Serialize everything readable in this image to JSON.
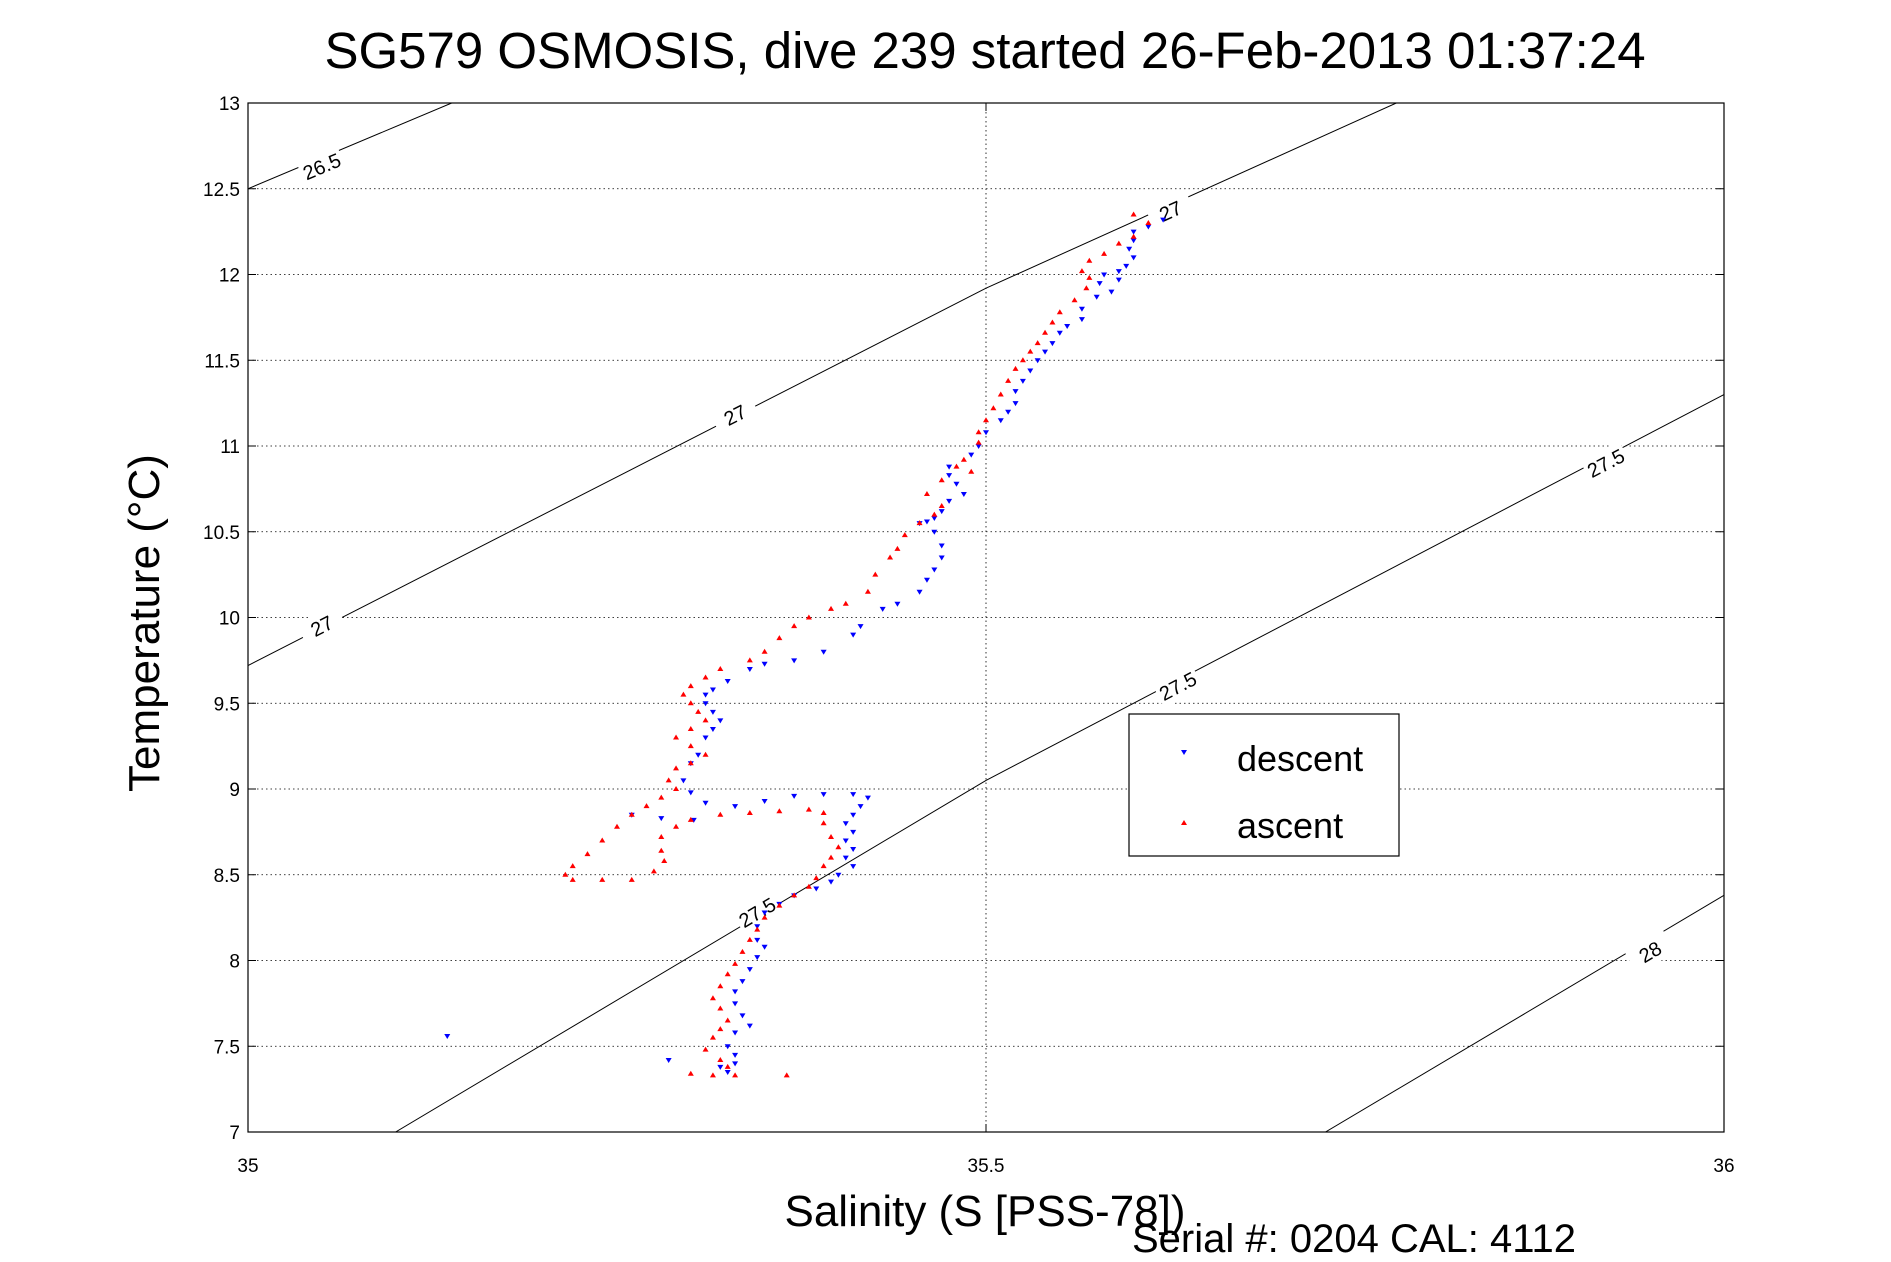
{
  "chart_data": {
    "type": "scatter",
    "title": "SG579 OSMOSIS, dive 239 started 26-Feb-2013 01:37:24",
    "xlabel": "Salinity (S [PSS-78])",
    "ylabel": "Temperature (°C)",
    "footer": "Serial #: 0204  CAL: 4112",
    "xlim": [
      35,
      36
    ],
    "ylim": [
      7,
      13
    ],
    "xticks": [
      35,
      35.5,
      36
    ],
    "xtick_labels": [
      "35",
      "35.5",
      "36"
    ],
    "yticks": [
      7,
      7.5,
      8,
      8.5,
      9,
      9.5,
      10,
      10.5,
      11,
      11.5,
      12,
      12.5,
      13
    ],
    "ytick_labels": [
      "7",
      "7.5",
      "8",
      "8.5",
      "9",
      "9.5",
      "10",
      "10.5",
      "11",
      "11.5",
      "12",
      "12.5",
      "13"
    ],
    "grid": true,
    "legend_position": "center-right",
    "density_contours": [
      {
        "level": "26.5",
        "points": [
          [
            35,
            12.5
          ],
          [
            35.138,
            13
          ]
        ],
        "labels": [
          [
            35.05,
            12.63
          ]
        ]
      },
      {
        "level": "27",
        "points": [
          [
            35,
            9.72
          ],
          [
            35.5,
            11.92
          ],
          [
            35.778,
            13
          ]
        ],
        "labels": [
          [
            35.05,
            9.95
          ],
          [
            35.33,
            11.18
          ],
          [
            35.625,
            12.37
          ]
        ]
      },
      {
        "level": "27.5",
        "points": [
          [
            35.1,
            7
          ],
          [
            35.5,
            9.05
          ],
          [
            36,
            11.3
          ]
        ],
        "labels": [
          [
            35.345,
            8.28
          ],
          [
            35.63,
            9.6
          ],
          [
            35.92,
            10.9
          ]
        ]
      },
      {
        "level": "28",
        "points": [
          [
            35.73,
            7
          ],
          [
            36,
            8.38
          ]
        ],
        "labels": [
          [
            35.95,
            8.05
          ]
        ]
      }
    ],
    "series": [
      {
        "name": "descent",
        "color": "#0000ff",
        "marker": "triangle-down",
        "points": [
          [
            35.62,
            12.32
          ],
          [
            35.61,
            12.28
          ],
          [
            35.6,
            12.25
          ],
          [
            35.6,
            12.2
          ],
          [
            35.597,
            12.15
          ],
          [
            35.6,
            12.1
          ],
          [
            35.595,
            12.05
          ],
          [
            35.59,
            12.02
          ],
          [
            35.58,
            12.0
          ],
          [
            35.59,
            11.97
          ],
          [
            35.577,
            11.95
          ],
          [
            35.585,
            11.9
          ],
          [
            35.575,
            11.87
          ],
          [
            35.565,
            11.8
          ],
          [
            35.565,
            11.74
          ],
          [
            35.555,
            11.7
          ],
          [
            35.55,
            11.66
          ],
          [
            35.545,
            11.6
          ],
          [
            35.54,
            11.55
          ],
          [
            35.535,
            11.5
          ],
          [
            35.53,
            11.44
          ],
          [
            35.525,
            11.38
          ],
          [
            35.52,
            11.32
          ],
          [
            35.52,
            11.25
          ],
          [
            35.515,
            11.2
          ],
          [
            35.51,
            11.15
          ],
          [
            35.5,
            11.08
          ],
          [
            35.495,
            11.0
          ],
          [
            35.49,
            10.95
          ],
          [
            35.475,
            10.88
          ],
          [
            35.475,
            10.83
          ],
          [
            35.48,
            10.78
          ],
          [
            35.485,
            10.72
          ],
          [
            35.475,
            10.68
          ],
          [
            35.47,
            10.62
          ],
          [
            35.465,
            10.58
          ],
          [
            35.46,
            10.56
          ],
          [
            35.455,
            10.55
          ],
          [
            35.465,
            10.5
          ],
          [
            35.47,
            10.42
          ],
          [
            35.47,
            10.35
          ],
          [
            35.465,
            10.28
          ],
          [
            35.46,
            10.22
          ],
          [
            35.455,
            10.15
          ],
          [
            35.44,
            10.08
          ],
          [
            35.43,
            10.05
          ],
          [
            35.415,
            9.95
          ],
          [
            35.41,
            9.9
          ],
          [
            35.39,
            9.8
          ],
          [
            35.37,
            9.75
          ],
          [
            35.35,
            9.73
          ],
          [
            35.34,
            9.7
          ],
          [
            35.325,
            9.63
          ],
          [
            35.315,
            9.58
          ],
          [
            35.31,
            9.55
          ],
          [
            35.31,
            9.5
          ],
          [
            35.315,
            9.45
          ],
          [
            35.32,
            9.4
          ],
          [
            35.315,
            9.35
          ],
          [
            35.31,
            9.3
          ],
          [
            35.305,
            9.2
          ],
          [
            35.3,
            9.15
          ],
          [
            35.295,
            9.05
          ],
          [
            35.3,
            8.98
          ],
          [
            35.31,
            8.92
          ],
          [
            35.33,
            8.9
          ],
          [
            35.35,
            8.93
          ],
          [
            35.37,
            8.96
          ],
          [
            35.39,
            8.97
          ],
          [
            35.41,
            8.97
          ],
          [
            35.42,
            8.95
          ],
          [
            35.415,
            8.9
          ],
          [
            35.41,
            8.85
          ],
          [
            35.405,
            8.8
          ],
          [
            35.41,
            8.75
          ],
          [
            35.405,
            8.7
          ],
          [
            35.41,
            8.65
          ],
          [
            35.405,
            8.6
          ],
          [
            35.41,
            8.55
          ],
          [
            35.4,
            8.5
          ],
          [
            35.395,
            8.46
          ],
          [
            35.385,
            8.42
          ],
          [
            35.37,
            8.38
          ],
          [
            35.36,
            8.33
          ],
          [
            35.35,
            8.28
          ],
          [
            35.345,
            8.2
          ],
          [
            35.345,
            8.12
          ],
          [
            35.35,
            8.08
          ],
          [
            35.345,
            8.02
          ],
          [
            35.34,
            7.95
          ],
          [
            35.335,
            7.88
          ],
          [
            35.33,
            7.82
          ],
          [
            35.33,
            7.75
          ],
          [
            35.335,
            7.68
          ],
          [
            35.34,
            7.62
          ],
          [
            35.33,
            7.58
          ],
          [
            35.325,
            7.5
          ],
          [
            35.33,
            7.45
          ],
          [
            35.33,
            7.4
          ],
          [
            35.325,
            7.35
          ],
          [
            35.32,
            7.38
          ],
          [
            35.302,
            8.82
          ],
          [
            35.28,
            8.83
          ],
          [
            35.26,
            8.85
          ],
          [
            35.135,
            7.56
          ],
          [
            35.285,
            7.42
          ]
        ]
      },
      {
        "name": "ascent",
        "color": "#ff0000",
        "marker": "triangle-up",
        "points": [
          [
            35.6,
            12.35
          ],
          [
            35.61,
            12.3
          ],
          [
            35.6,
            12.22
          ],
          [
            35.59,
            12.18
          ],
          [
            35.58,
            12.12
          ],
          [
            35.57,
            12.08
          ],
          [
            35.565,
            12.02
          ],
          [
            35.57,
            11.98
          ],
          [
            35.568,
            11.92
          ],
          [
            35.56,
            11.85
          ],
          [
            35.55,
            11.78
          ],
          [
            35.545,
            11.72
          ],
          [
            35.54,
            11.66
          ],
          [
            35.535,
            11.6
          ],
          [
            35.53,
            11.55
          ],
          [
            35.525,
            11.5
          ],
          [
            35.52,
            11.45
          ],
          [
            35.515,
            11.38
          ],
          [
            35.51,
            11.3
          ],
          [
            35.505,
            11.22
          ],
          [
            35.5,
            11.15
          ],
          [
            35.495,
            11.08
          ],
          [
            35.495,
            11.02
          ],
          [
            35.485,
            10.92
          ],
          [
            35.48,
            10.88
          ],
          [
            35.49,
            10.85
          ],
          [
            35.47,
            10.8
          ],
          [
            35.46,
            10.72
          ],
          [
            35.47,
            10.65
          ],
          [
            35.465,
            10.6
          ],
          [
            35.455,
            10.55
          ],
          [
            35.445,
            10.48
          ],
          [
            35.44,
            10.4
          ],
          [
            35.435,
            10.35
          ],
          [
            35.425,
            10.25
          ],
          [
            35.42,
            10.15
          ],
          [
            35.405,
            10.08
          ],
          [
            35.395,
            10.05
          ],
          [
            35.38,
            10.0
          ],
          [
            35.37,
            9.95
          ],
          [
            35.36,
            9.88
          ],
          [
            35.35,
            9.8
          ],
          [
            35.34,
            9.75
          ],
          [
            35.32,
            9.7
          ],
          [
            35.31,
            9.65
          ],
          [
            35.3,
            9.6
          ],
          [
            35.295,
            9.55
          ],
          [
            35.3,
            9.5
          ],
          [
            35.305,
            9.45
          ],
          [
            35.31,
            9.4
          ],
          [
            35.3,
            9.35
          ],
          [
            35.29,
            9.3
          ],
          [
            35.3,
            9.25
          ],
          [
            35.31,
            9.2
          ],
          [
            35.3,
            9.15
          ],
          [
            35.29,
            9.12
          ],
          [
            35.285,
            9.05
          ],
          [
            35.29,
            9.0
          ],
          [
            35.28,
            8.95
          ],
          [
            35.27,
            8.9
          ],
          [
            35.26,
            8.85
          ],
          [
            35.25,
            8.78
          ],
          [
            35.24,
            8.7
          ],
          [
            35.23,
            8.62
          ],
          [
            35.22,
            8.55
          ],
          [
            35.215,
            8.5
          ],
          [
            35.22,
            8.47
          ],
          [
            35.24,
            8.47
          ],
          [
            35.26,
            8.47
          ],
          [
            35.275,
            8.52
          ],
          [
            35.282,
            8.58
          ],
          [
            35.28,
            8.64
          ],
          [
            35.28,
            8.72
          ],
          [
            35.29,
            8.78
          ],
          [
            35.3,
            8.82
          ],
          [
            35.32,
            8.85
          ],
          [
            35.34,
            8.86
          ],
          [
            35.36,
            8.87
          ],
          [
            35.38,
            8.88
          ],
          [
            35.39,
            8.86
          ],
          [
            35.39,
            8.8
          ],
          [
            35.395,
            8.72
          ],
          [
            35.4,
            8.66
          ],
          [
            35.395,
            8.6
          ],
          [
            35.39,
            8.55
          ],
          [
            35.385,
            8.48
          ],
          [
            35.38,
            8.43
          ],
          [
            35.37,
            8.38
          ],
          [
            35.36,
            8.32
          ],
          [
            35.35,
            8.25
          ],
          [
            35.345,
            8.18
          ],
          [
            35.34,
            8.12
          ],
          [
            35.335,
            8.05
          ],
          [
            35.33,
            7.98
          ],
          [
            35.325,
            7.92
          ],
          [
            35.32,
            7.85
          ],
          [
            35.315,
            7.78
          ],
          [
            35.32,
            7.72
          ],
          [
            35.325,
            7.65
          ],
          [
            35.32,
            7.6
          ],
          [
            35.315,
            7.55
          ],
          [
            35.31,
            7.48
          ],
          [
            35.32,
            7.42
          ],
          [
            35.325,
            7.38
          ],
          [
            35.33,
            7.33
          ],
          [
            35.315,
            7.33
          ],
          [
            35.3,
            7.34
          ],
          [
            35.365,
            7.33
          ]
        ]
      }
    ]
  }
}
